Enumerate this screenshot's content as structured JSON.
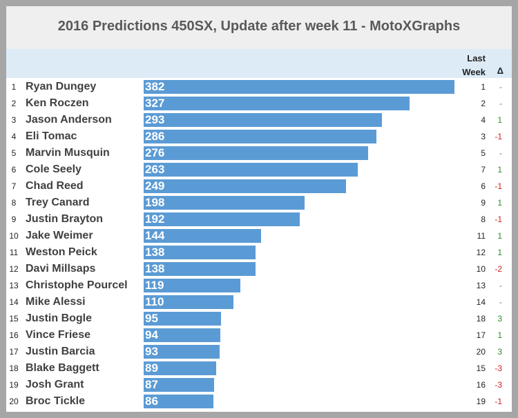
{
  "chart_data": {
    "type": "bar",
    "title": "2016 Predictions 450SX, Update after week 11 - MotoXGraphs",
    "last_week_header": "Last Week",
    "delta_header": "Δ",
    "ranks": [
      1,
      2,
      3,
      4,
      5,
      6,
      7,
      8,
      9,
      10,
      11,
      12,
      13,
      14,
      15,
      16,
      17,
      18,
      19,
      20
    ],
    "categories": [
      "Ryan Dungey",
      "Ken Roczen",
      "Jason Anderson",
      "Eli Tomac",
      "Marvin Musquin",
      "Cole Seely",
      "Chad Reed",
      "Trey Canard",
      "Justin Brayton",
      "Jake Weimer",
      "Weston Peick",
      "Davi Millsaps",
      "Christophe Pourcel",
      "Mike Alessi",
      "Justin Bogle",
      "Vince Friese",
      "Justin Barcia",
      "Blake Baggett",
      "Josh Grant",
      "Broc Tickle"
    ],
    "values": [
      382,
      327,
      293,
      286,
      276,
      263,
      249,
      198,
      192,
      144,
      138,
      138,
      119,
      110,
      95,
      94,
      93,
      89,
      87,
      86
    ],
    "last_week": [
      1,
      2,
      4,
      3,
      5,
      7,
      6,
      9,
      8,
      11,
      12,
      10,
      13,
      14,
      18,
      17,
      20,
      15,
      16,
      19
    ],
    "delta": [
      "-",
      "-",
      "1",
      "-1",
      "-",
      "1",
      "-1",
      "1",
      "-1",
      "1",
      "1",
      "-2",
      "-",
      "-",
      "3",
      "1",
      "3",
      "-3",
      "-3",
      "-1"
    ],
    "color": "#5b9bd5",
    "xlim": [
      0,
      400
    ]
  }
}
